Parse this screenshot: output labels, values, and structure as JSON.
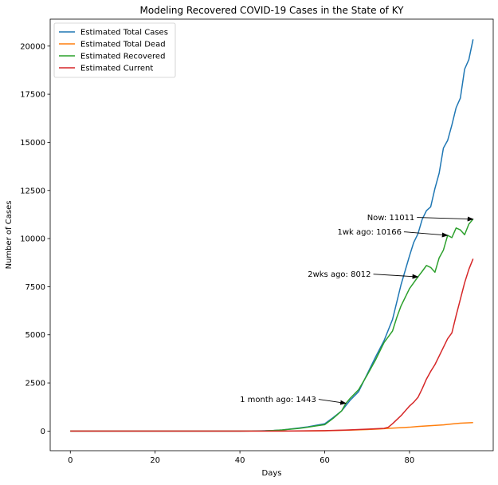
{
  "chart_data": {
    "type": "line",
    "title": "Modeling Recovered COVID-19 Cases in the State of KY",
    "xlabel": "Days",
    "ylabel": "Number of Cases",
    "xlim": [
      -4.75,
      99.75
    ],
    "ylim": [
      -1020,
      21400
    ],
    "xticks": [
      0,
      20,
      40,
      60,
      80
    ],
    "yticks": [
      0,
      2500,
      5000,
      7500,
      10000,
      12500,
      15000,
      17500,
      20000
    ],
    "grid": false,
    "legend_position": "upper-left",
    "series": [
      {
        "name": "Estimated Total Cases",
        "color": "#1f77b4",
        "x": [
          0,
          10,
          20,
          30,
          40,
          45,
          48,
          50,
          52,
          54,
          56,
          58,
          60,
          62,
          64,
          66,
          68,
          70,
          72,
          74,
          76,
          78,
          80,
          81,
          82,
          83,
          84,
          85,
          86,
          87,
          88,
          89,
          90,
          91,
          92,
          93,
          94,
          95
        ],
        "y": [
          0,
          0,
          0,
          0,
          0,
          10,
          30,
          60,
          110,
          160,
          220,
          300,
          380,
          700,
          1050,
          1600,
          2050,
          2950,
          3850,
          4700,
          5800,
          7600,
          9100,
          9800,
          10250,
          11000,
          11450,
          11650,
          12600,
          13400,
          14700,
          15100,
          15900,
          16800,
          17300,
          18800,
          19300,
          20350
        ]
      },
      {
        "name": "Estimated Total Dead",
        "color": "#ff7f0e",
        "x": [
          0,
          10,
          20,
          30,
          40,
          50,
          55,
          60,
          65,
          70,
          73,
          75,
          78,
          80,
          82,
          85,
          88,
          90,
          92,
          95
        ],
        "y": [
          0,
          0,
          0,
          0,
          0,
          0,
          5,
          15,
          40,
          80,
          110,
          140,
          175,
          200,
          240,
          280,
          320,
          370,
          410,
          440
        ]
      },
      {
        "name": "Estimated Recovered",
        "color": "#2ca02c",
        "x": [
          0,
          10,
          20,
          30,
          40,
          46,
          48,
          50,
          52,
          54,
          56,
          58,
          60,
          62,
          64,
          65,
          66,
          68,
          70,
          72,
          74,
          75,
          76,
          77,
          78,
          80,
          82,
          83,
          84,
          85,
          86,
          87,
          88,
          89,
          90,
          91,
          92,
          93,
          94,
          95
        ],
        "y": [
          0,
          0,
          0,
          0,
          0,
          10,
          30,
          60,
          100,
          140,
          200,
          270,
          330,
          660,
          1050,
          1443,
          1700,
          2150,
          2900,
          3700,
          4600,
          4900,
          5200,
          5900,
          6500,
          7400,
          8012,
          8300,
          8600,
          8500,
          8250,
          9000,
          9400,
          10166,
          10050,
          10550,
          10450,
          10200,
          10750,
          11011
        ]
      },
      {
        "name": "Estimated Current",
        "color": "#d62728",
        "x": [
          0,
          10,
          20,
          30,
          40,
          50,
          60,
          65,
          70,
          72,
          74,
          75,
          76,
          78,
          80,
          81,
          82,
          83,
          84,
          85,
          86,
          87,
          88,
          89,
          90,
          91,
          92,
          93,
          94,
          95
        ],
        "y": [
          0,
          0,
          0,
          0,
          0,
          0,
          20,
          50,
          100,
          120,
          140,
          200,
          380,
          800,
          1300,
          1500,
          1750,
          2200,
          2700,
          3100,
          3450,
          3900,
          4350,
          4800,
          5100,
          6000,
          6850,
          7700,
          8400,
          8950
        ]
      }
    ],
    "annotations": [
      {
        "text": "Now: 11011",
        "x": 95,
        "y": 11011,
        "text_x": 70.0,
        "text_y": 11100
      },
      {
        "text": "1wk ago: 10166",
        "x": 89,
        "y": 10166,
        "text_x": 63.0,
        "text_y": 10350
      },
      {
        "text": "2wks ago: 8012",
        "x": 82,
        "y": 8012,
        "text_x": 56.0,
        "text_y": 8150
      },
      {
        "text": "1 month ago: 1443",
        "x": 65,
        "y": 1443,
        "text_x": 40.0,
        "text_y": 1650
      }
    ]
  }
}
